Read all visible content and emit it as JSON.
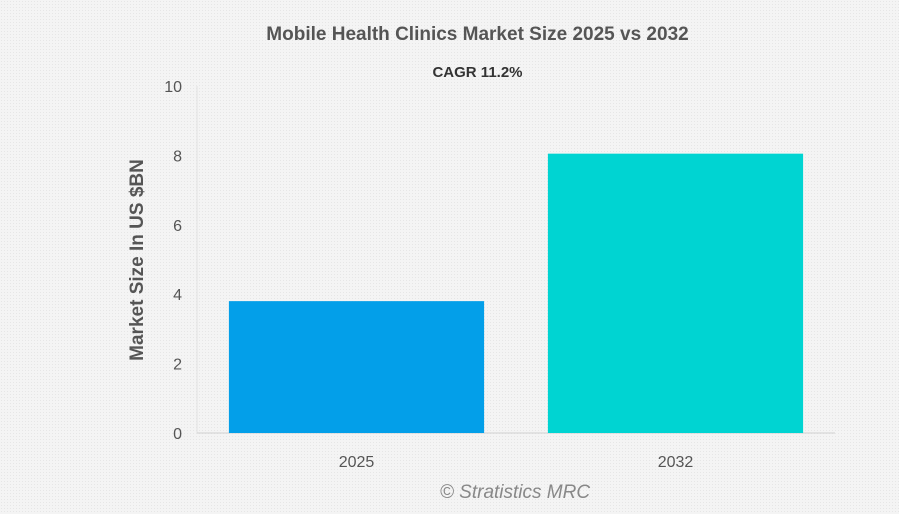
{
  "chart_data": {
    "type": "bar",
    "title": "Mobile Health Clinics Market Size 2025 vs 2032",
    "subtitle": "CAGR 11.2%",
    "categories": [
      "2025",
      "2032"
    ],
    "values": [
      3.8,
      8.05
    ],
    "ylabel": "Market Size In US $BN",
    "xlabel": "",
    "ylim": [
      0,
      10
    ],
    "yticks": [
      0,
      2,
      4,
      6,
      8,
      10
    ],
    "colors": [
      "#039fe9",
      "#00d4d2"
    ],
    "grid": false
  },
  "credit": "© Stratistics MRC"
}
